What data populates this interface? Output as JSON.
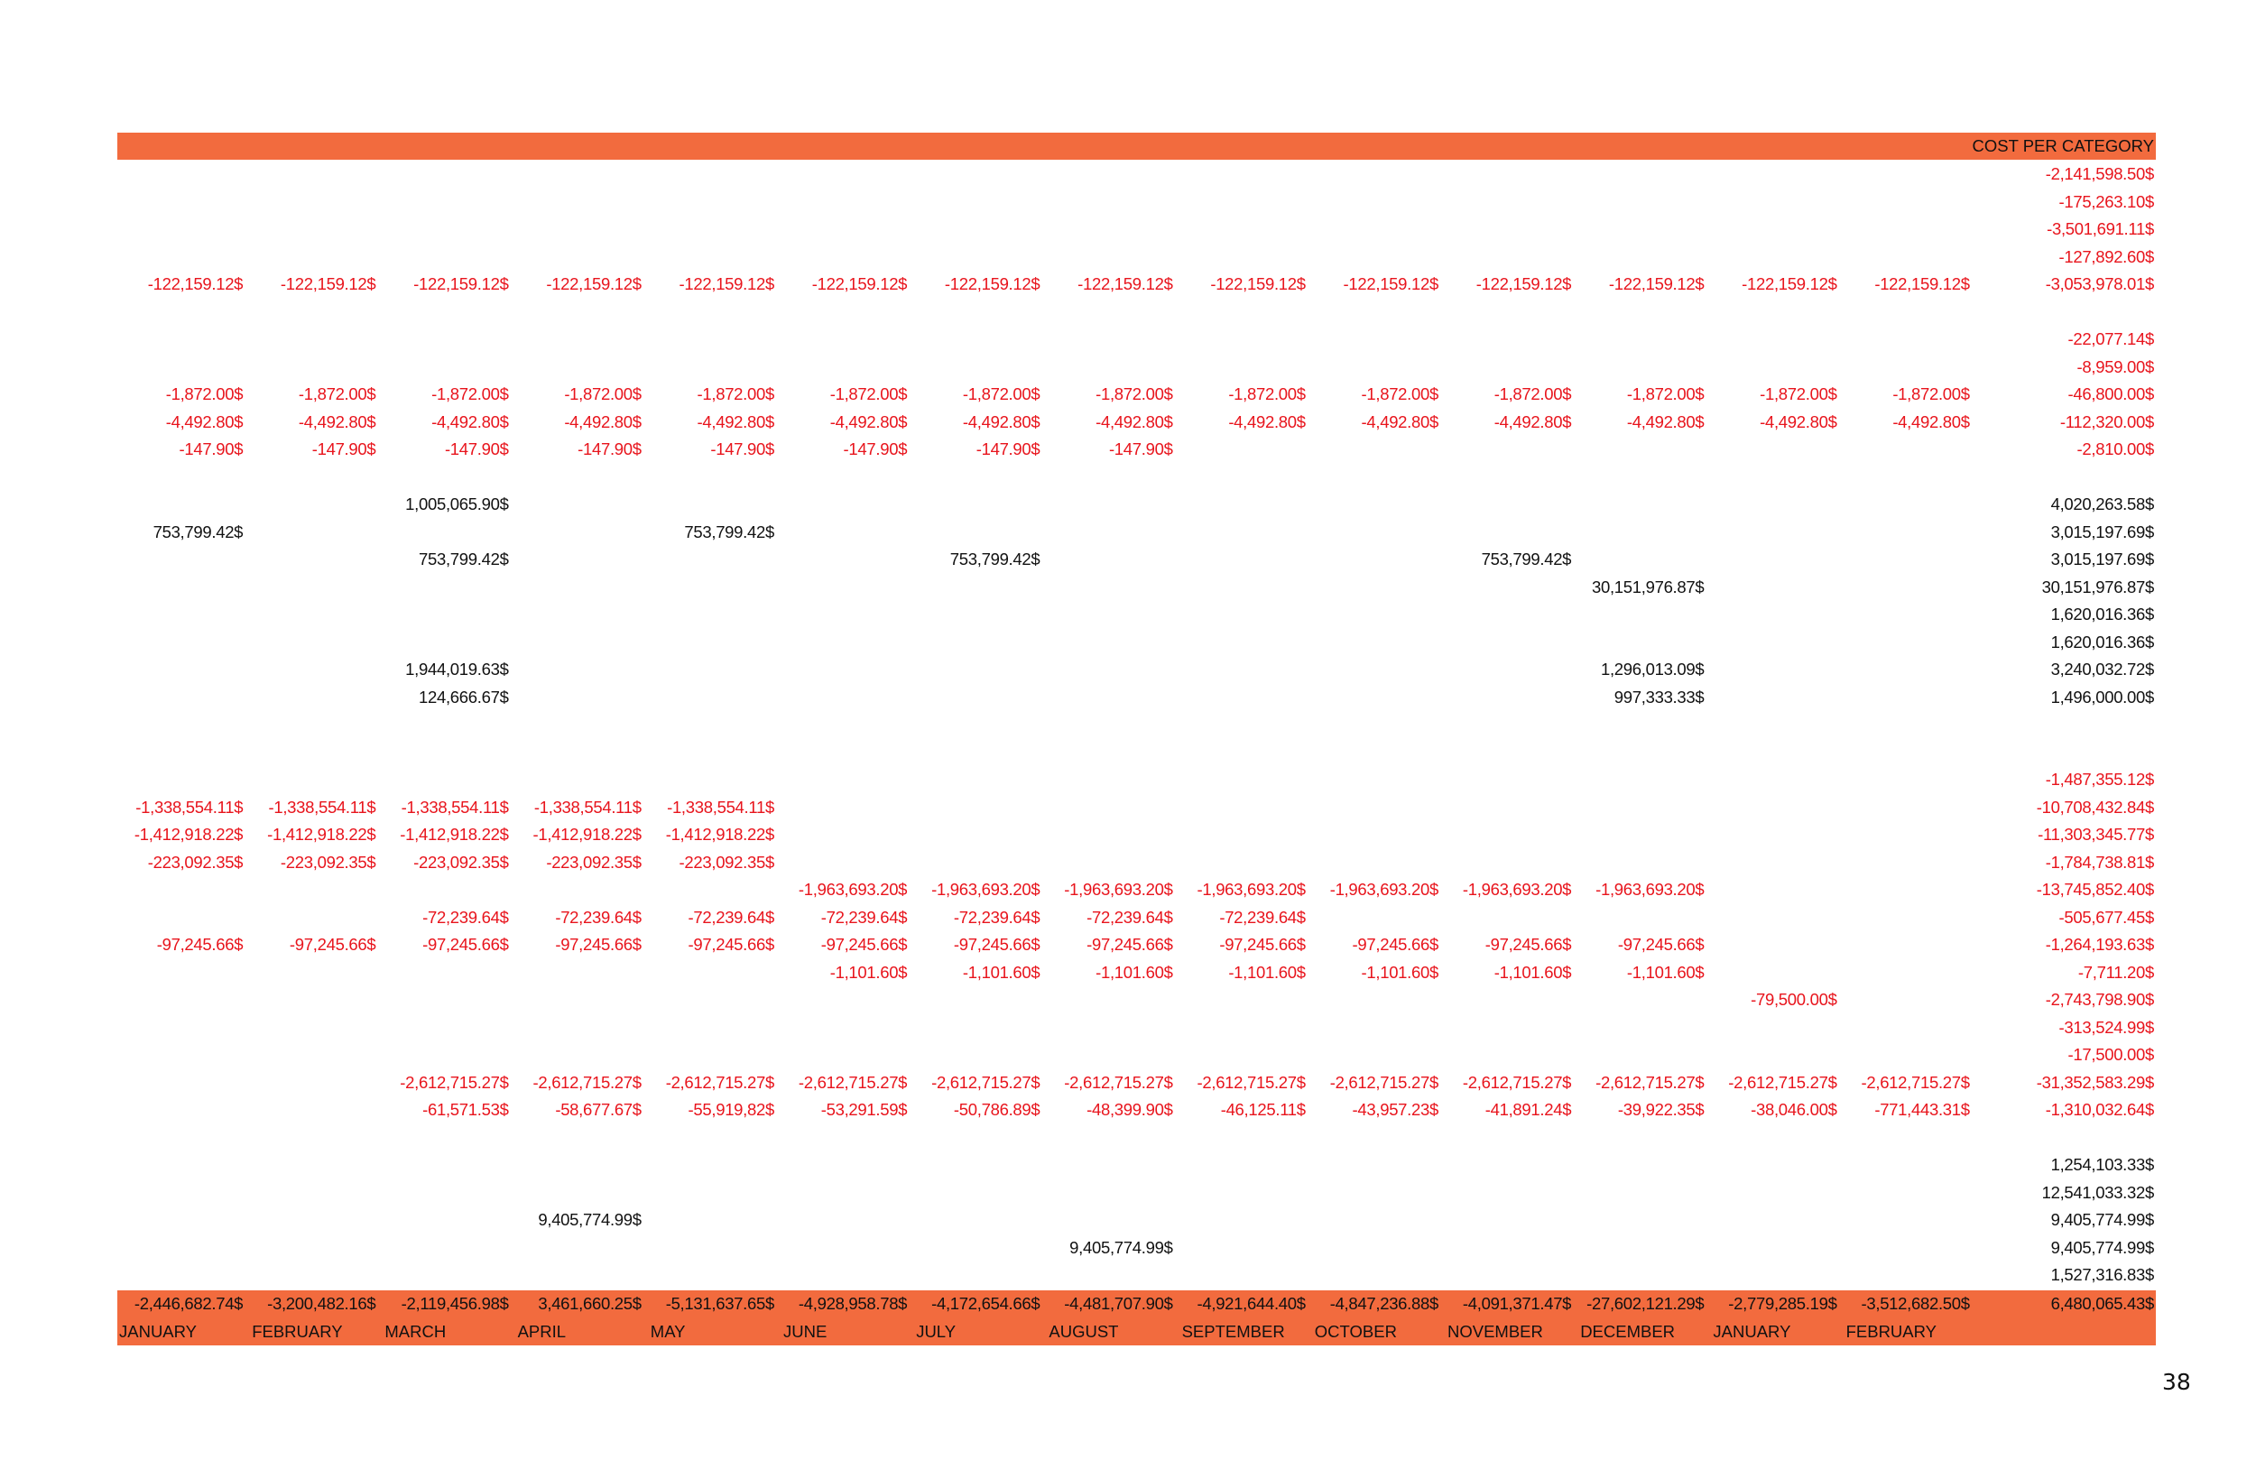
{
  "header": {
    "total_column_label": "COST PER CATEGORY"
  },
  "colors": {
    "accent": "#f26b3e",
    "negative": "#e8141c",
    "positive": "#111111"
  },
  "rows": [
    {
      "cells": [],
      "total": "-2,141,598.50$"
    },
    {
      "cells": [],
      "total": "-175,263.10$"
    },
    {
      "cells": [],
      "total": "-3,501,691.11$"
    },
    {
      "cells": [],
      "total": "-127,892.60$"
    },
    {
      "cells": [
        "-122,159.12$",
        "-122,159.12$",
        "-122,159.12$",
        "-122,159.12$",
        "-122,159.12$",
        "-122,159.12$",
        "-122,159.12$",
        "-122,159.12$",
        "-122,159.12$",
        "-122,159.12$",
        "-122,159.12$",
        "-122,159.12$",
        "-122,159.12$",
        "-122,159.12$"
      ],
      "total": "-3,053,978.01$"
    },
    {
      "cells": [],
      "total": ""
    },
    {
      "cells": [],
      "total": "-22,077.14$"
    },
    {
      "cells": [],
      "total": "-8,959.00$"
    },
    {
      "cells": [
        "-1,872.00$",
        "-1,872.00$",
        "-1,872.00$",
        "-1,872.00$",
        "-1,872.00$",
        "-1,872.00$",
        "-1,872.00$",
        "-1,872.00$",
        "-1,872.00$",
        "-1,872.00$",
        "-1,872.00$",
        "-1,872.00$",
        "-1,872.00$",
        "-1,872.00$"
      ],
      "total": "-46,800.00$"
    },
    {
      "cells": [
        "-4,492.80$",
        "-4,492.80$",
        "-4,492.80$",
        "-4,492.80$",
        "-4,492.80$",
        "-4,492.80$",
        "-4,492.80$",
        "-4,492.80$",
        "-4,492.80$",
        "-4,492.80$",
        "-4,492.80$",
        "-4,492.80$",
        "-4,492.80$",
        "-4,492.80$"
      ],
      "total": "-112,320.00$"
    },
    {
      "cells": [
        "-147.90$",
        "-147.90$",
        "-147.90$",
        "-147.90$",
        "-147.90$",
        "-147.90$",
        "-147.90$",
        "-147.90$"
      ],
      "total": "-2,810.00$"
    },
    {
      "cells": [],
      "total": ""
    },
    {
      "cells": [
        "",
        "",
        "1,005,065.90$"
      ],
      "total": "4,020,263.58$"
    },
    {
      "cells": [
        "753,799.42$",
        "",
        "",
        "",
        "753,799.42$"
      ],
      "total": "3,015,197.69$"
    },
    {
      "cells": [
        "",
        "",
        "753,799.42$",
        "",
        "",
        "",
        "753,799.42$",
        "",
        "",
        "",
        "753,799.42$"
      ],
      "total": "3,015,197.69$"
    },
    {
      "cells": [
        "",
        "",
        "",
        "",
        "",
        "",
        "",
        "",
        "",
        "",
        "",
        "30,151,976.87$"
      ],
      "total": "30,151,976.87$"
    },
    {
      "cells": [],
      "total": "1,620,016.36$"
    },
    {
      "cells": [],
      "total": "1,620,016.36$"
    },
    {
      "cells": [
        "",
        "",
        "1,944,019.63$",
        "",
        "",
        "",
        "",
        "",
        "",
        "",
        "",
        "1,296,013.09$"
      ],
      "total": "3,240,032.72$"
    },
    {
      "cells": [
        "",
        "",
        "124,666.67$",
        "",
        "",
        "",
        "",
        "",
        "",
        "",
        "",
        "997,333.33$"
      ],
      "total": "1,496,000.00$"
    },
    {
      "cells": [],
      "total": ""
    },
    {
      "cells": [],
      "total": ""
    },
    {
      "cells": [],
      "total": "-1,487,355.12$"
    },
    {
      "cells": [
        "-1,338,554.11$",
        "-1,338,554.11$",
        "-1,338,554.11$",
        "-1,338,554.11$",
        "-1,338,554.11$"
      ],
      "total": "-10,708,432.84$"
    },
    {
      "cells": [
        "-1,412,918.22$",
        "-1,412,918.22$",
        "-1,412,918.22$",
        "-1,412,918.22$",
        "-1,412,918.22$"
      ],
      "total": "-11,303,345.77$"
    },
    {
      "cells": [
        "-223,092.35$",
        "-223,092.35$",
        "-223,092.35$",
        "-223,092.35$",
        "-223,092.35$"
      ],
      "total": "-1,784,738.81$"
    },
    {
      "cells": [
        "",
        "",
        "",
        "",
        "",
        "-1,963,693.20$",
        "-1,963,693.20$",
        "-1,963,693.20$",
        "-1,963,693.20$",
        "-1,963,693.20$",
        "-1,963,693.20$",
        "-1,963,693.20$"
      ],
      "total": "-13,745,852.40$"
    },
    {
      "cells": [
        "",
        "",
        "-72,239.64$",
        "-72,239.64$",
        "-72,239.64$",
        "-72,239.64$",
        "-72,239.64$",
        "-72,239.64$",
        "-72,239.64$"
      ],
      "total": "-505,677.45$"
    },
    {
      "cells": [
        "-97,245.66$",
        "-97,245.66$",
        "-97,245.66$",
        "-97,245.66$",
        "-97,245.66$",
        "-97,245.66$",
        "-97,245.66$",
        "-97,245.66$",
        "-97,245.66$",
        "-97,245.66$",
        "-97,245.66$",
        "-97,245.66$"
      ],
      "total": "-1,264,193.63$"
    },
    {
      "cells": [
        "",
        "",
        "",
        "",
        "",
        "-1,101.60$",
        "-1,101.60$",
        "-1,101.60$",
        "-1,101.60$",
        "-1,101.60$",
        "-1,101.60$",
        "-1,101.60$"
      ],
      "total": "-7,711.20$"
    },
    {
      "cells": [
        "",
        "",
        "",
        "",
        "",
        "",
        "",
        "",
        "",
        "",
        "",
        "",
        "-79,500.00$"
      ],
      "total": "-2,743,798.90$"
    },
    {
      "cells": [],
      "total": "-313,524.99$"
    },
    {
      "cells": [],
      "total": "-17,500.00$"
    },
    {
      "cells": [
        "",
        "",
        "-2,612,715.27$",
        "-2,612,715.27$",
        "-2,612,715.27$",
        "-2,612,715.27$",
        "-2,612,715.27$",
        "-2,612,715.27$",
        "-2,612,715.27$",
        "-2,612,715.27$",
        "-2,612,715.27$",
        "-2,612,715.27$",
        "-2,612,715.27$",
        "-2,612,715.27$"
      ],
      "total": "-31,352,583.29$"
    },
    {
      "cells": [
        "",
        "",
        "-61,571.53$",
        "-58,677.67$",
        "-55,919,82$",
        "-53,291.59$",
        "-50,786.89$",
        "-48,399.90$",
        "-46,125.11$",
        "-43,957.23$",
        "-41,891.24$",
        "-39,922.35$",
        "-38,046.00$",
        "-771,443.31$"
      ],
      "total": "-1,310,032.64$"
    },
    {
      "cells": [],
      "total": ""
    },
    {
      "cells": [],
      "total": "1,254,103.33$"
    },
    {
      "cells": [],
      "total": "12,541,033.32$"
    },
    {
      "cells": [
        "",
        "",
        "",
        "9,405,774.99$"
      ],
      "total": "9,405,774.99$"
    },
    {
      "cells": [
        "",
        "",
        "",
        "",
        "",
        "",
        "",
        "9,405,774.99$"
      ],
      "total": "9,405,774.99$"
    },
    {
      "cells": [],
      "total": "1,527,316.83$"
    }
  ],
  "footer": {
    "month_totals": [
      "-2,446,682.74$",
      "-3,200,482.16$",
      "-2,119,456.98$",
      "3,461,660.25$",
      "-5,131,637.65$",
      "-4,928,958.78$",
      "-4,172,654.66$",
      "-4,481,707.90$",
      "-4,921,644.40$",
      "-4,847,236.88$",
      "-4,091,371.47$",
      "-27,602,121.29$",
      "-2,779,285.19$",
      "-3,512,682.50$"
    ],
    "grand_total": "6,480,065.43$",
    "months": [
      "JANUARY",
      "FEBRUARY",
      "MARCH",
      "APRIL",
      "MAY",
      "JUNE",
      "JULY",
      "AUGUST",
      "SEPTEMBER",
      "OCTOBER",
      "NOVEMBER",
      "DECEMBER",
      "JANUARY",
      "FEBRUARY"
    ]
  },
  "page_number": "38"
}
